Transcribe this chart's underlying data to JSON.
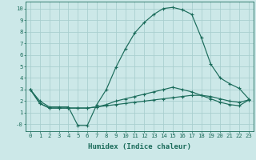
{
  "xlabel": "Humidex (Indice chaleur)",
  "bg_color": "#cce8e8",
  "grid_color": "#aacfcf",
  "line_color": "#1a6b5a",
  "xlim": [
    -0.5,
    23.5
  ],
  "ylim": [
    -0.6,
    10.6
  ],
  "yticks": [
    0,
    1,
    2,
    3,
    4,
    5,
    6,
    7,
    8,
    9,
    10
  ],
  "ytick_labels": [
    "-0",
    "1",
    "2",
    "3",
    "4",
    "5",
    "6",
    "7",
    "8",
    "9",
    "10"
  ],
  "xticks": [
    0,
    1,
    2,
    3,
    4,
    5,
    6,
    7,
    8,
    9,
    10,
    11,
    12,
    13,
    14,
    15,
    16,
    17,
    18,
    19,
    20,
    21,
    22,
    23
  ],
  "line1_x": [
    0,
    1,
    2,
    3,
    4,
    5,
    6,
    7,
    8,
    9,
    10,
    11,
    12,
    13,
    14,
    15,
    16,
    17,
    18,
    19,
    20,
    21,
    22,
    23
  ],
  "line1_y": [
    3.0,
    2.0,
    1.5,
    1.5,
    1.5,
    -0.1,
    -0.1,
    1.7,
    3.0,
    4.9,
    6.5,
    7.9,
    8.8,
    9.5,
    10.0,
    10.1,
    9.9,
    9.5,
    7.5,
    5.2,
    4.0,
    3.5,
    3.1,
    2.2
  ],
  "line2_x": [
    0,
    1,
    2,
    3,
    4,
    5,
    6,
    7,
    8,
    9,
    10,
    11,
    12,
    13,
    14,
    15,
    16,
    17,
    18,
    19,
    20,
    21,
    22,
    23
  ],
  "line2_y": [
    3.0,
    1.8,
    1.4,
    1.4,
    1.4,
    1.4,
    1.4,
    1.5,
    1.6,
    1.7,
    1.8,
    1.9,
    2.0,
    2.1,
    2.2,
    2.3,
    2.4,
    2.5,
    2.5,
    2.4,
    2.2,
    2.0,
    1.9,
    2.1
  ],
  "line3_x": [
    0,
    1,
    2,
    3,
    4,
    5,
    6,
    7,
    8,
    9,
    10,
    11,
    12,
    13,
    14,
    15,
    16,
    17,
    18,
    19,
    20,
    21,
    22,
    23
  ],
  "line3_y": [
    3.0,
    1.8,
    1.4,
    1.4,
    1.4,
    1.4,
    1.4,
    1.5,
    1.7,
    2.0,
    2.2,
    2.4,
    2.6,
    2.8,
    3.0,
    3.2,
    3.0,
    2.8,
    2.5,
    2.2,
    1.9,
    1.7,
    1.6,
    2.1
  ],
  "xlabel_fontsize": 6.5,
  "tick_fontsize": 5.2,
  "line_width": 0.85,
  "marker_size": 3.5
}
